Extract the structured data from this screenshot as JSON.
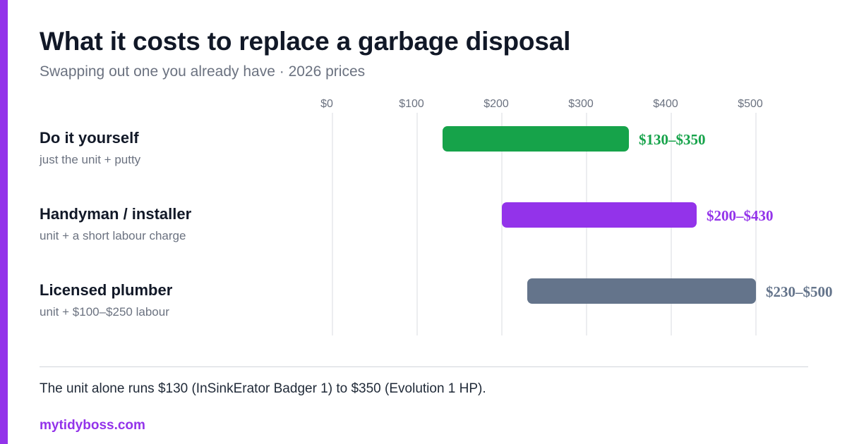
{
  "colors": {
    "accent": "#9333ea",
    "grid": "#e5e7eb",
    "title": "#111827",
    "muted": "#6b7280"
  },
  "header": {
    "title": "What it costs to replace a garbage disposal",
    "subtitle": "Swapping out one you already have · 2026 prices"
  },
  "chart_data": {
    "type": "bar",
    "orientation": "horizontal-range",
    "title": "What it costs to replace a garbage disposal",
    "subtitle": "Swapping out one you already have · 2026 prices",
    "xlabel": "",
    "ylabel": "",
    "xlim": [
      0,
      500
    ],
    "ticks": [
      0,
      100,
      200,
      300,
      400,
      500
    ],
    "tick_labels": [
      "$0",
      "$100",
      "$200",
      "$300",
      "$400",
      "$500"
    ],
    "grid": true,
    "categories": [
      {
        "label": "Do it yourself",
        "sublabel": "just the unit + putty",
        "low": 130,
        "high": 350,
        "value_label": "$130–$350",
        "color": "#16a34a"
      },
      {
        "label": "Handyman / installer",
        "sublabel": "unit + a short labour charge",
        "low": 200,
        "high": 430,
        "value_label": "$200–$430",
        "color": "#9333ea"
      },
      {
        "label": "Licensed plumber",
        "sublabel": "unit + $100–$250 labour",
        "low": 230,
        "high": 500,
        "value_label": "$230–$500",
        "color": "#64748b"
      }
    ]
  },
  "footer": {
    "note": "The unit alone runs $130 (InSinkErator Badger 1) to $350 (Evolution 1 HP).",
    "brand": "mytidyboss.com"
  }
}
